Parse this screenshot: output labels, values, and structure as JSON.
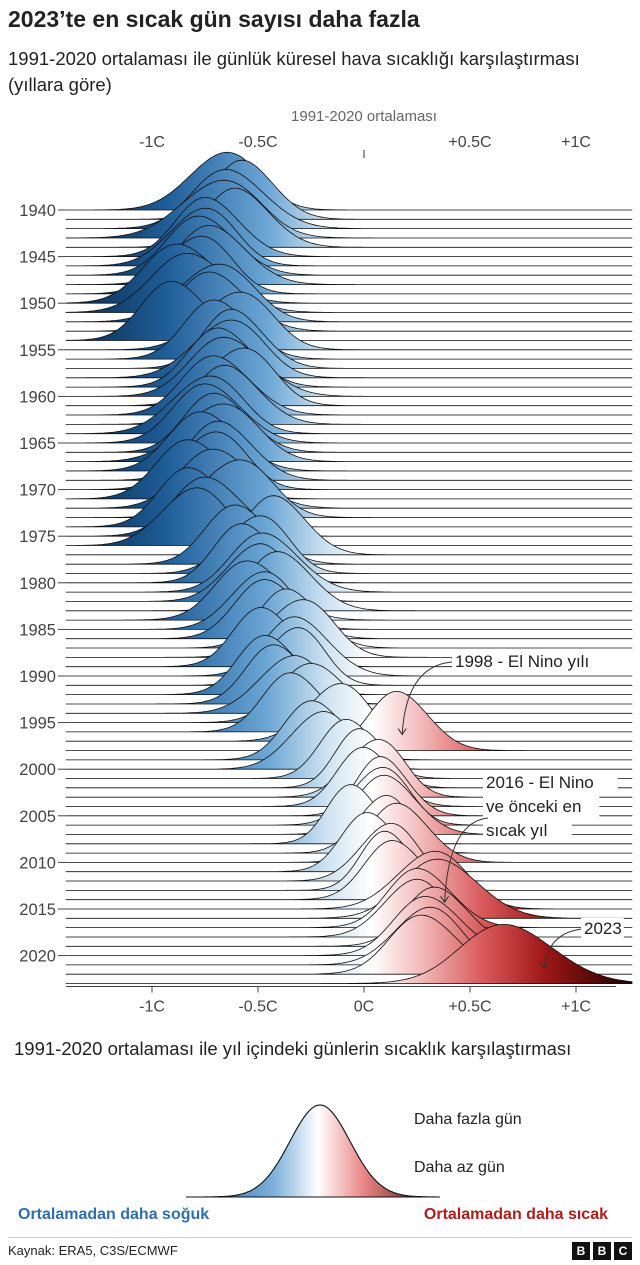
{
  "header": {
    "title": "2023’te en sıcak gün sayısı daha fazla",
    "subtitle": "1991-2020 ortalaması ile günlük küresel hava sıcaklığı karşılaştırması (yıllara göre)"
  },
  "chart_data": {
    "type": "ridgeline",
    "reference_label": "1991-2020 ortalaması",
    "top_ticks": [
      "-1C",
      "-0.5C",
      "+0.5C",
      "+1C"
    ],
    "top_tick_values": [
      -1,
      -0.5,
      0.5,
      1
    ],
    "bottom_ticks": [
      "-1C",
      "-0.5C",
      "0C",
      "+0.5C",
      "+1C"
    ],
    "bottom_tick_values": [
      -1,
      -0.5,
      0,
      0.5,
      1
    ],
    "xlim": [
      -1.4,
      1.25
    ],
    "year_labels": [
      "1940",
      "1945",
      "1950",
      "1955",
      "1960",
      "1965",
      "1970",
      "1975",
      "1980",
      "1985",
      "1990",
      "1995",
      "2000",
      "2005",
      "2010",
      "2015",
      "2020"
    ],
    "years": [
      1940,
      1941,
      1942,
      1943,
      1944,
      1945,
      1946,
      1947,
      1948,
      1949,
      1950,
      1951,
      1952,
      1953,
      1954,
      1955,
      1956,
      1957,
      1958,
      1959,
      1960,
      1961,
      1962,
      1963,
      1964,
      1965,
      1966,
      1967,
      1968,
      1969,
      1970,
      1971,
      1972,
      1973,
      1974,
      1975,
      1976,
      1977,
      1978,
      1979,
      1980,
      1981,
      1982,
      1983,
      1984,
      1985,
      1986,
      1987,
      1988,
      1989,
      1990,
      1991,
      1992,
      1993,
      1994,
      1995,
      1996,
      1997,
      1998,
      1999,
      2000,
      2001,
      2002,
      2003,
      2004,
      2005,
      2006,
      2007,
      2008,
      2009,
      2010,
      2011,
      2012,
      2013,
      2014,
      2015,
      2016,
      2017,
      2018,
      2019,
      2020,
      2021,
      2022,
      2023
    ],
    "peak_anomaly_c": [
      -0.68,
      -0.55,
      -0.62,
      -0.7,
      -0.58,
      -0.72,
      -0.78,
      -0.75,
      -0.7,
      -0.8,
      -0.85,
      -0.8,
      -0.72,
      -0.7,
      -0.88,
      -0.62,
      -0.68,
      -0.6,
      -0.66,
      -0.66,
      -0.63,
      -0.6,
      -0.68,
      -0.63,
      -0.76,
      -0.72,
      -0.68,
      -0.7,
      -0.74,
      -0.66,
      -0.73,
      -0.8,
      -0.68,
      -0.62,
      -0.8,
      -0.72,
      -0.82,
      -0.4,
      -0.58,
      -0.52,
      -0.55,
      -0.45,
      -0.52,
      -0.38,
      -0.52,
      -0.5,
      -0.44,
      -0.34,
      -0.32,
      -0.46,
      -0.3,
      -0.34,
      -0.44,
      -0.4,
      -0.36,
      -0.22,
      -0.32,
      -0.14,
      0.18,
      -0.22,
      -0.22,
      -0.06,
      0.0,
      0.04,
      0.02,
      0.1,
      0.06,
      0.12,
      -0.04,
      0.08,
      0.18,
      0.04,
      0.1,
      0.12,
      0.16,
      0.3,
      0.38,
      0.28,
      0.22,
      0.36,
      0.32,
      0.28,
      0.3,
      0.7
    ],
    "spread_c": [
      0.16,
      0.14,
      0.17,
      0.18,
      0.15,
      0.15,
      0.15,
      0.16,
      0.16,
      0.15,
      0.17,
      0.18,
      0.17,
      0.16,
      0.15,
      0.16,
      0.15,
      0.14,
      0.16,
      0.15,
      0.17,
      0.15,
      0.16,
      0.15,
      0.16,
      0.16,
      0.15,
      0.17,
      0.16,
      0.15,
      0.15,
      0.16,
      0.17,
      0.16,
      0.15,
      0.16,
      0.15,
      0.14,
      0.15,
      0.14,
      0.14,
      0.16,
      0.14,
      0.15,
      0.16,
      0.14,
      0.15,
      0.14,
      0.15,
      0.14,
      0.15,
      0.13,
      0.14,
      0.14,
      0.15,
      0.16,
      0.14,
      0.14,
      0.14,
      0.14,
      0.14,
      0.13,
      0.12,
      0.13,
      0.13,
      0.12,
      0.13,
      0.14,
      0.12,
      0.12,
      0.14,
      0.13,
      0.13,
      0.12,
      0.14,
      0.16,
      0.18,
      0.15,
      0.14,
      0.15,
      0.16,
      0.15,
      0.16,
      0.22
    ],
    "annotations": [
      {
        "lines": [
          "1998 - El Nino yılı"
        ],
        "year": 1998,
        "value_c": 0.18
      },
      {
        "lines": [
          "2016 - El Nino",
          "ve önceki en",
          "sıcak yıl"
        ],
        "year": 2016,
        "value_c": 0.38
      },
      {
        "lines": [
          "2023"
        ],
        "year": 2023,
        "value_c": 0.85
      }
    ]
  },
  "legend": {
    "title": "1991-2020 ortalaması ile yıl içindeki günlerin sıcaklık karşılaştırması",
    "more_days": "Daha fazla gün",
    "fewer_days": "Daha az gün",
    "colder": "Ortalamadan daha soğuk",
    "warmer": "Ortalamadan daha sıcak"
  },
  "footer": {
    "source": "Kaynak: ERA5, C3S/ECMWF",
    "logo": [
      "B",
      "B",
      "C"
    ]
  },
  "colors": {
    "cold_dark": "#0b3b66",
    "cold_mid": "#3f86c4",
    "neutral": "#ffffff",
    "warm_mid": "#e06d6d",
    "warm_dark": "#3a0404"
  }
}
